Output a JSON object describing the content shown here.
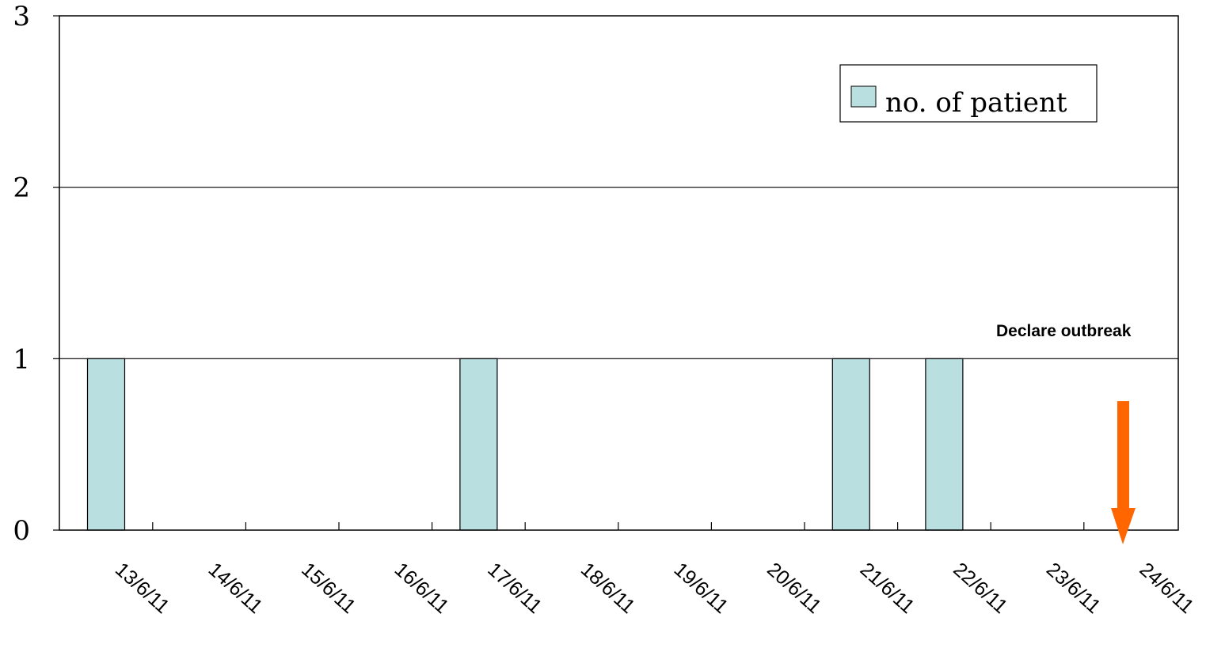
{
  "chart_data": {
    "type": "bar",
    "categories": [
      "13/6/11",
      "14/6/11",
      "15/6/11",
      "16/6/11",
      "17/6/11",
      "18/6/11",
      "19/6/11",
      "20/6/11",
      "21/6/11",
      "22/6/11",
      "23/6/11",
      "24/6/11"
    ],
    "series": [
      {
        "name": "no. of patient",
        "values": [
          1,
          0,
          0,
          0,
          1,
          0,
          0,
          0,
          1,
          1,
          0,
          0
        ],
        "color": "#b9dfe0"
      }
    ],
    "ylim": [
      0,
      3
    ],
    "yticks": [
      "0",
      "1",
      "2",
      "3"
    ],
    "grid": "horizontal",
    "legend": {
      "placement": "top-right",
      "label": "no. of patient"
    },
    "annotation": {
      "text": "Declare outbreak",
      "category": "24/6/11",
      "arrow_color": "#ff6600"
    }
  }
}
